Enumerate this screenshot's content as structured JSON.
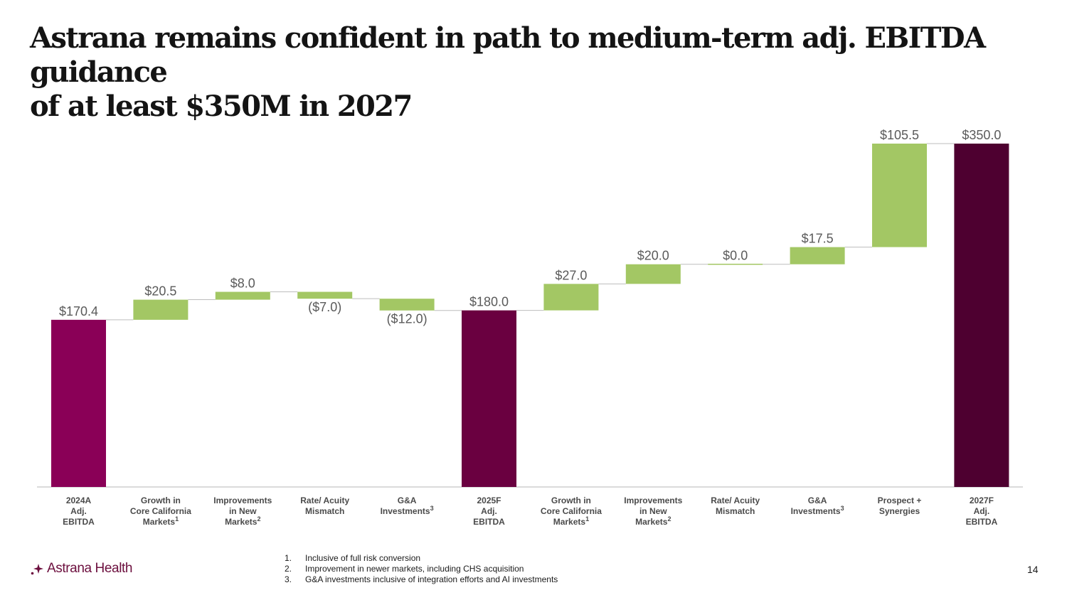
{
  "slide": {
    "title_line1": "Astrana remains confident in path to medium-term adj. EBITDA guidance",
    "title_line2": "of at least $350M in 2027",
    "page_number": "14"
  },
  "logo": {
    "text": "Astrana Health"
  },
  "footnotes": [
    {
      "num": "1.",
      "text": "Inclusive of full risk conversion"
    },
    {
      "num": "2.",
      "text": "Improvement in newer markets, including CHS acquisition"
    },
    {
      "num": "3.",
      "text": "G&A investments inclusive of integration efforts and AI investments"
    }
  ],
  "colors": {
    "total_2024": "#8a0057",
    "total_2025": "#6a0040",
    "total_2027": "#4e0030",
    "increase": "#a3c764",
    "axis": "#cfcfcf",
    "connector": "#bdbdbd",
    "label": "#5a5a5a",
    "category": "#4a4a4a"
  },
  "chart_data": {
    "type": "waterfall",
    "unit": "$M",
    "ylim": [
      0,
      350
    ],
    "steps": [
      {
        "label_lines": [
          "2024A",
          "Adj.",
          "EBITDA"
        ],
        "footnote": "",
        "value": 170.4,
        "kind": "total",
        "value_label": "$170.4",
        "color_key": "total_2024"
      },
      {
        "label_lines": [
          "Growth in",
          "Core California",
          "Markets"
        ],
        "footnote": "1",
        "value": 20.5,
        "kind": "delta",
        "value_label": "$20.5"
      },
      {
        "label_lines": [
          "Improvements",
          "in New",
          "Markets"
        ],
        "footnote": "2",
        "value": 8.0,
        "kind": "delta",
        "value_label": "$8.0"
      },
      {
        "label_lines": [
          "Rate/ Acuity",
          "Mismatch"
        ],
        "footnote": "",
        "value": -7.0,
        "kind": "delta",
        "value_label": "($7.0)"
      },
      {
        "label_lines": [
          "G&A",
          "Investments"
        ],
        "footnote": "3",
        "value": -12.0,
        "kind": "delta",
        "value_label": "($12.0)"
      },
      {
        "label_lines": [
          "2025F",
          "Adj.",
          "EBITDA"
        ],
        "footnote": "",
        "value": 180.0,
        "kind": "total",
        "value_label": "$180.0",
        "color_key": "total_2025"
      },
      {
        "label_lines": [
          "Growth in",
          "Core California",
          "Markets"
        ],
        "footnote": "1",
        "value": 27.0,
        "kind": "delta",
        "value_label": "$27.0"
      },
      {
        "label_lines": [
          "Improvements",
          "in New",
          "Markets"
        ],
        "footnote": "2",
        "value": 20.0,
        "kind": "delta",
        "value_label": "$20.0"
      },
      {
        "label_lines": [
          "Rate/ Acuity",
          "Mismatch"
        ],
        "footnote": "",
        "value": 0.0,
        "kind": "delta",
        "value_label": "$0.0"
      },
      {
        "label_lines": [
          "G&A",
          "Investments"
        ],
        "footnote": "3",
        "value": 17.5,
        "kind": "delta",
        "value_label": "$17.5"
      },
      {
        "label_lines": [
          "Prospect +",
          "Synergies"
        ],
        "footnote": "",
        "value": 105.5,
        "kind": "delta",
        "value_label": "$105.5"
      },
      {
        "label_lines": [
          "2027F",
          "Adj.",
          "EBITDA"
        ],
        "footnote": "",
        "value": 350.0,
        "kind": "total",
        "value_label": "$350.0",
        "color_key": "total_2027"
      }
    ]
  }
}
